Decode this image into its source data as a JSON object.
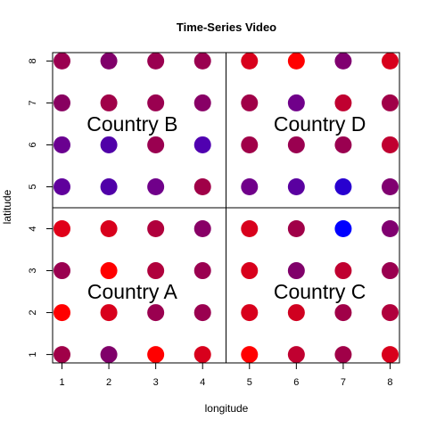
{
  "chart_data": {
    "type": "scatter",
    "title": "Time-Series Video",
    "xlabel": "longitude",
    "ylabel": "latitude",
    "xlim": [
      0.8,
      8.2
    ],
    "ylim": [
      0.8,
      8.2
    ],
    "x_ticks": [
      1,
      2,
      3,
      4,
      5,
      6,
      7,
      8
    ],
    "y_ticks": [
      1,
      2,
      3,
      4,
      5,
      6,
      7,
      8
    ],
    "dividers": {
      "x": 4.5,
      "y": 4.5
    },
    "regions": [
      {
        "label": "Country A",
        "x": 2.5,
        "y": 2.5
      },
      {
        "label": "Country B",
        "x": 2.5,
        "y": 6.5
      },
      {
        "label": "Country C",
        "x": 6.5,
        "y": 2.5
      },
      {
        "label": "Country D",
        "x": 6.5,
        "y": 6.5
      }
    ],
    "points": [
      {
        "x": 1,
        "y": 8,
        "color": "#9a0050"
      },
      {
        "x": 2,
        "y": 8,
        "color": "#80006a"
      },
      {
        "x": 3,
        "y": 8,
        "color": "#9a0050"
      },
      {
        "x": 4,
        "y": 8,
        "color": "#9a0050"
      },
      {
        "x": 5,
        "y": 8,
        "color": "#d8001c"
      },
      {
        "x": 6,
        "y": 8,
        "color": "#ff0000"
      },
      {
        "x": 7,
        "y": 8,
        "color": "#800070"
      },
      {
        "x": 8,
        "y": 8,
        "color": "#d8001c"
      },
      {
        "x": 1,
        "y": 7,
        "color": "#880060"
      },
      {
        "x": 2,
        "y": 7,
        "color": "#a00048"
      },
      {
        "x": 3,
        "y": 7,
        "color": "#9a0050"
      },
      {
        "x": 4,
        "y": 7,
        "color": "#880066"
      },
      {
        "x": 5,
        "y": 7,
        "color": "#a00048"
      },
      {
        "x": 6,
        "y": 7,
        "color": "#70008a"
      },
      {
        "x": 7,
        "y": 7,
        "color": "#c00030"
      },
      {
        "x": 8,
        "y": 7,
        "color": "#a00048"
      },
      {
        "x": 1,
        "y": 6,
        "color": "#6a0090"
      },
      {
        "x": 2,
        "y": 6,
        "color": "#5000a8"
      },
      {
        "x": 3,
        "y": 6,
        "color": "#9a0050"
      },
      {
        "x": 4,
        "y": 6,
        "color": "#5000b0"
      },
      {
        "x": 5,
        "y": 6,
        "color": "#a00048"
      },
      {
        "x": 6,
        "y": 6,
        "color": "#9a0050"
      },
      {
        "x": 7,
        "y": 6,
        "color": "#9a0050"
      },
      {
        "x": 8,
        "y": 6,
        "color": "#c00030"
      },
      {
        "x": 1,
        "y": 5,
        "color": "#60009c"
      },
      {
        "x": 2,
        "y": 5,
        "color": "#5000a8"
      },
      {
        "x": 3,
        "y": 5,
        "color": "#70008a"
      },
      {
        "x": 4,
        "y": 5,
        "color": "#a00048"
      },
      {
        "x": 5,
        "y": 5,
        "color": "#70008a"
      },
      {
        "x": 6,
        "y": 5,
        "color": "#5a00a0"
      },
      {
        "x": 7,
        "y": 5,
        "color": "#2800d0"
      },
      {
        "x": 8,
        "y": 5,
        "color": "#800070"
      },
      {
        "x": 1,
        "y": 4,
        "color": "#e00018"
      },
      {
        "x": 2,
        "y": 4,
        "color": "#d8001c"
      },
      {
        "x": 3,
        "y": 4,
        "color": "#b0003c"
      },
      {
        "x": 4,
        "y": 4,
        "color": "#880066"
      },
      {
        "x": 5,
        "y": 4,
        "color": "#d8001c"
      },
      {
        "x": 6,
        "y": 4,
        "color": "#a00048"
      },
      {
        "x": 7,
        "y": 4,
        "color": "#0000ff"
      },
      {
        "x": 8,
        "y": 4,
        "color": "#800070"
      },
      {
        "x": 1,
        "y": 3,
        "color": "#9a0050"
      },
      {
        "x": 2,
        "y": 3,
        "color": "#ff0000"
      },
      {
        "x": 3,
        "y": 3,
        "color": "#b0003c"
      },
      {
        "x": 4,
        "y": 3,
        "color": "#9a0050"
      },
      {
        "x": 5,
        "y": 3,
        "color": "#d8001c"
      },
      {
        "x": 6,
        "y": 3,
        "color": "#80006a"
      },
      {
        "x": 7,
        "y": 3,
        "color": "#c00030"
      },
      {
        "x": 8,
        "y": 3,
        "color": "#9a0050"
      },
      {
        "x": 1,
        "y": 2,
        "color": "#ff0000"
      },
      {
        "x": 2,
        "y": 2,
        "color": "#d8001c"
      },
      {
        "x": 3,
        "y": 2,
        "color": "#9a0050"
      },
      {
        "x": 4,
        "y": 2,
        "color": "#9a0050"
      },
      {
        "x": 5,
        "y": 2,
        "color": "#d8001c"
      },
      {
        "x": 6,
        "y": 2,
        "color": "#d00020"
      },
      {
        "x": 7,
        "y": 2,
        "color": "#a00048"
      },
      {
        "x": 8,
        "y": 2,
        "color": "#b0003c"
      },
      {
        "x": 1,
        "y": 1,
        "color": "#a00048"
      },
      {
        "x": 2,
        "y": 1,
        "color": "#80006a"
      },
      {
        "x": 3,
        "y": 1,
        "color": "#ff0000"
      },
      {
        "x": 4,
        "y": 1,
        "color": "#d8001c"
      },
      {
        "x": 5,
        "y": 1,
        "color": "#ff0000"
      },
      {
        "x": 6,
        "y": 1,
        "color": "#c00030"
      },
      {
        "x": 7,
        "y": 1,
        "color": "#a00048"
      },
      {
        "x": 8,
        "y": 1,
        "color": "#d8001c"
      }
    ]
  }
}
